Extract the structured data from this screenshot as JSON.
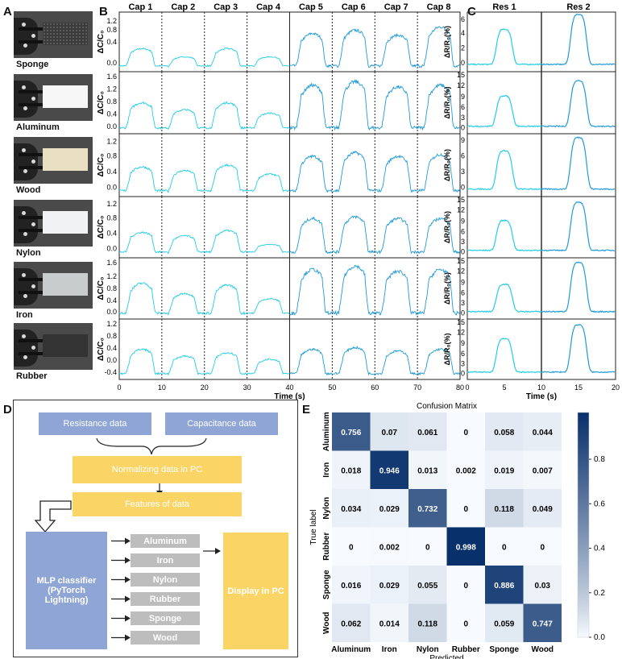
{
  "panels": {
    "a": "A",
    "b": "B",
    "c": "C",
    "d": "D",
    "e": "E"
  },
  "materials": [
    {
      "name": "Sponge",
      "color": "#3b3b3b"
    },
    {
      "name": "Aluminum",
      "color": "#f7f7f7"
    },
    {
      "name": "Wood",
      "color": "#e9dfc3"
    },
    {
      "name": "Nylon",
      "color": "#f0f2f3"
    },
    {
      "name": "Iron",
      "color": "#c9cccd"
    },
    {
      "name": "Rubber",
      "color": "#333333"
    }
  ],
  "panel_b": {
    "caps": [
      "Cap 1",
      "Cap 2",
      "Cap 3",
      "Cap 4",
      "Cap 5",
      "Cap 6",
      "Cap 7",
      "Cap 8"
    ],
    "ylabel": "ΔC/C₀",
    "xlabel": "Time (s)",
    "xticks": [
      "0",
      "10",
      "20",
      "30",
      "40",
      "50",
      "60",
      "70",
      "80"
    ],
    "yticks": [
      [
        "1.2",
        "0.8",
        "0.4",
        "0.0"
      ],
      [
        "1.6",
        "1.2",
        "0.8",
        "0.4",
        "0.0"
      ],
      [
        "1.2",
        "0.8",
        "0.4",
        "0.0"
      ],
      [
        "1.2",
        "0.8",
        "0.4",
        "0.0"
      ],
      [
        "1.6",
        "1.2",
        "0.8",
        "0.4",
        "0.0"
      ],
      [
        "1.2",
        "0.8",
        "0.4",
        "0.0",
        "-0.4"
      ]
    ]
  },
  "panel_c": {
    "res": [
      "Res 1",
      "Res 2"
    ],
    "ylabel": "ΔR/R₀(%)",
    "xlabel": "Time (s)",
    "xticks": [
      "0",
      "5",
      "10",
      "15",
      "20"
    ],
    "yticks": [
      [
        "6",
        "4",
        "2",
        "0"
      ],
      [
        "15",
        "12",
        "9",
        "6",
        "3",
        "0"
      ],
      [
        "9",
        "6",
        "3",
        "0"
      ],
      [
        "15",
        "12",
        "9",
        "6",
        "3",
        "0"
      ],
      [
        "15",
        "12",
        "9",
        "6",
        "3",
        "0"
      ],
      [
        "15",
        "12",
        "9",
        "6",
        "3",
        "0"
      ]
    ]
  },
  "flow": {
    "resistance": "Resistance data",
    "capacitance": "Capacitance data",
    "normalizing": "Normalizing data in PC",
    "features": "Features of data",
    "mlp": "MLP classifier (PyTorch Lightning)",
    "outputs": [
      "Aluminum",
      "Iron",
      "Nylon",
      "Rubber",
      "Sponge",
      "Wood"
    ],
    "display": "Display in PC"
  },
  "chart_data": {
    "type": "heatmap",
    "title": "Confusion Matrix",
    "xlabel": "Predicted",
    "ylabel": "True label",
    "labels": [
      "Aluminum",
      "Iron",
      "Nylon",
      "Rubber",
      "Sponge",
      "Wood"
    ],
    "matrix": [
      [
        0.756,
        0.07,
        0.061,
        0,
        0.058,
        0.044
      ],
      [
        0.018,
        0.946,
        0.013,
        0.002,
        0.019,
        0.007
      ],
      [
        0.034,
        0.029,
        0.732,
        0,
        0.118,
        0.049
      ],
      [
        0,
        0.002,
        0,
        0.998,
        0,
        0
      ],
      [
        0.016,
        0.029,
        0.055,
        0,
        0.886,
        0.03
      ],
      [
        0.062,
        0.014,
        0.118,
        0,
        0.059,
        0.747
      ]
    ],
    "cells_text": [
      [
        "0.756",
        "0.07",
        "0.061",
        "0",
        "0.058",
        "0.044"
      ],
      [
        "0.018",
        "0.946",
        "0.013",
        "0.002",
        "0.019",
        "0.007"
      ],
      [
        "0.034",
        "0.029",
        "0.732",
        "0",
        "0.118",
        "0.049"
      ],
      [
        "0",
        "0.002",
        "0",
        "0.998",
        "0",
        "0"
      ],
      [
        "0.016",
        "0.029",
        "0.055",
        "0",
        "0.886",
        "0.03"
      ],
      [
        "0.062",
        "0.014",
        "0.118",
        "0",
        "0.059",
        "0.747"
      ]
    ],
    "colorbar_ticks": [
      "0.8",
      "0.6",
      "0.4",
      "0.2",
      "0.0"
    ],
    "colorbar_values": [
      0.8,
      0.6,
      0.4,
      0.2,
      0.0
    ],
    "vmin": 0,
    "vmax": 1
  },
  "colors": {
    "cap_light": "#22cde6",
    "cap_dark": "#1f9bd8",
    "flow_blue": "#8fa5d6",
    "flow_yellow": "#fbd466",
    "flow_gray": "#bdbdbd"
  }
}
